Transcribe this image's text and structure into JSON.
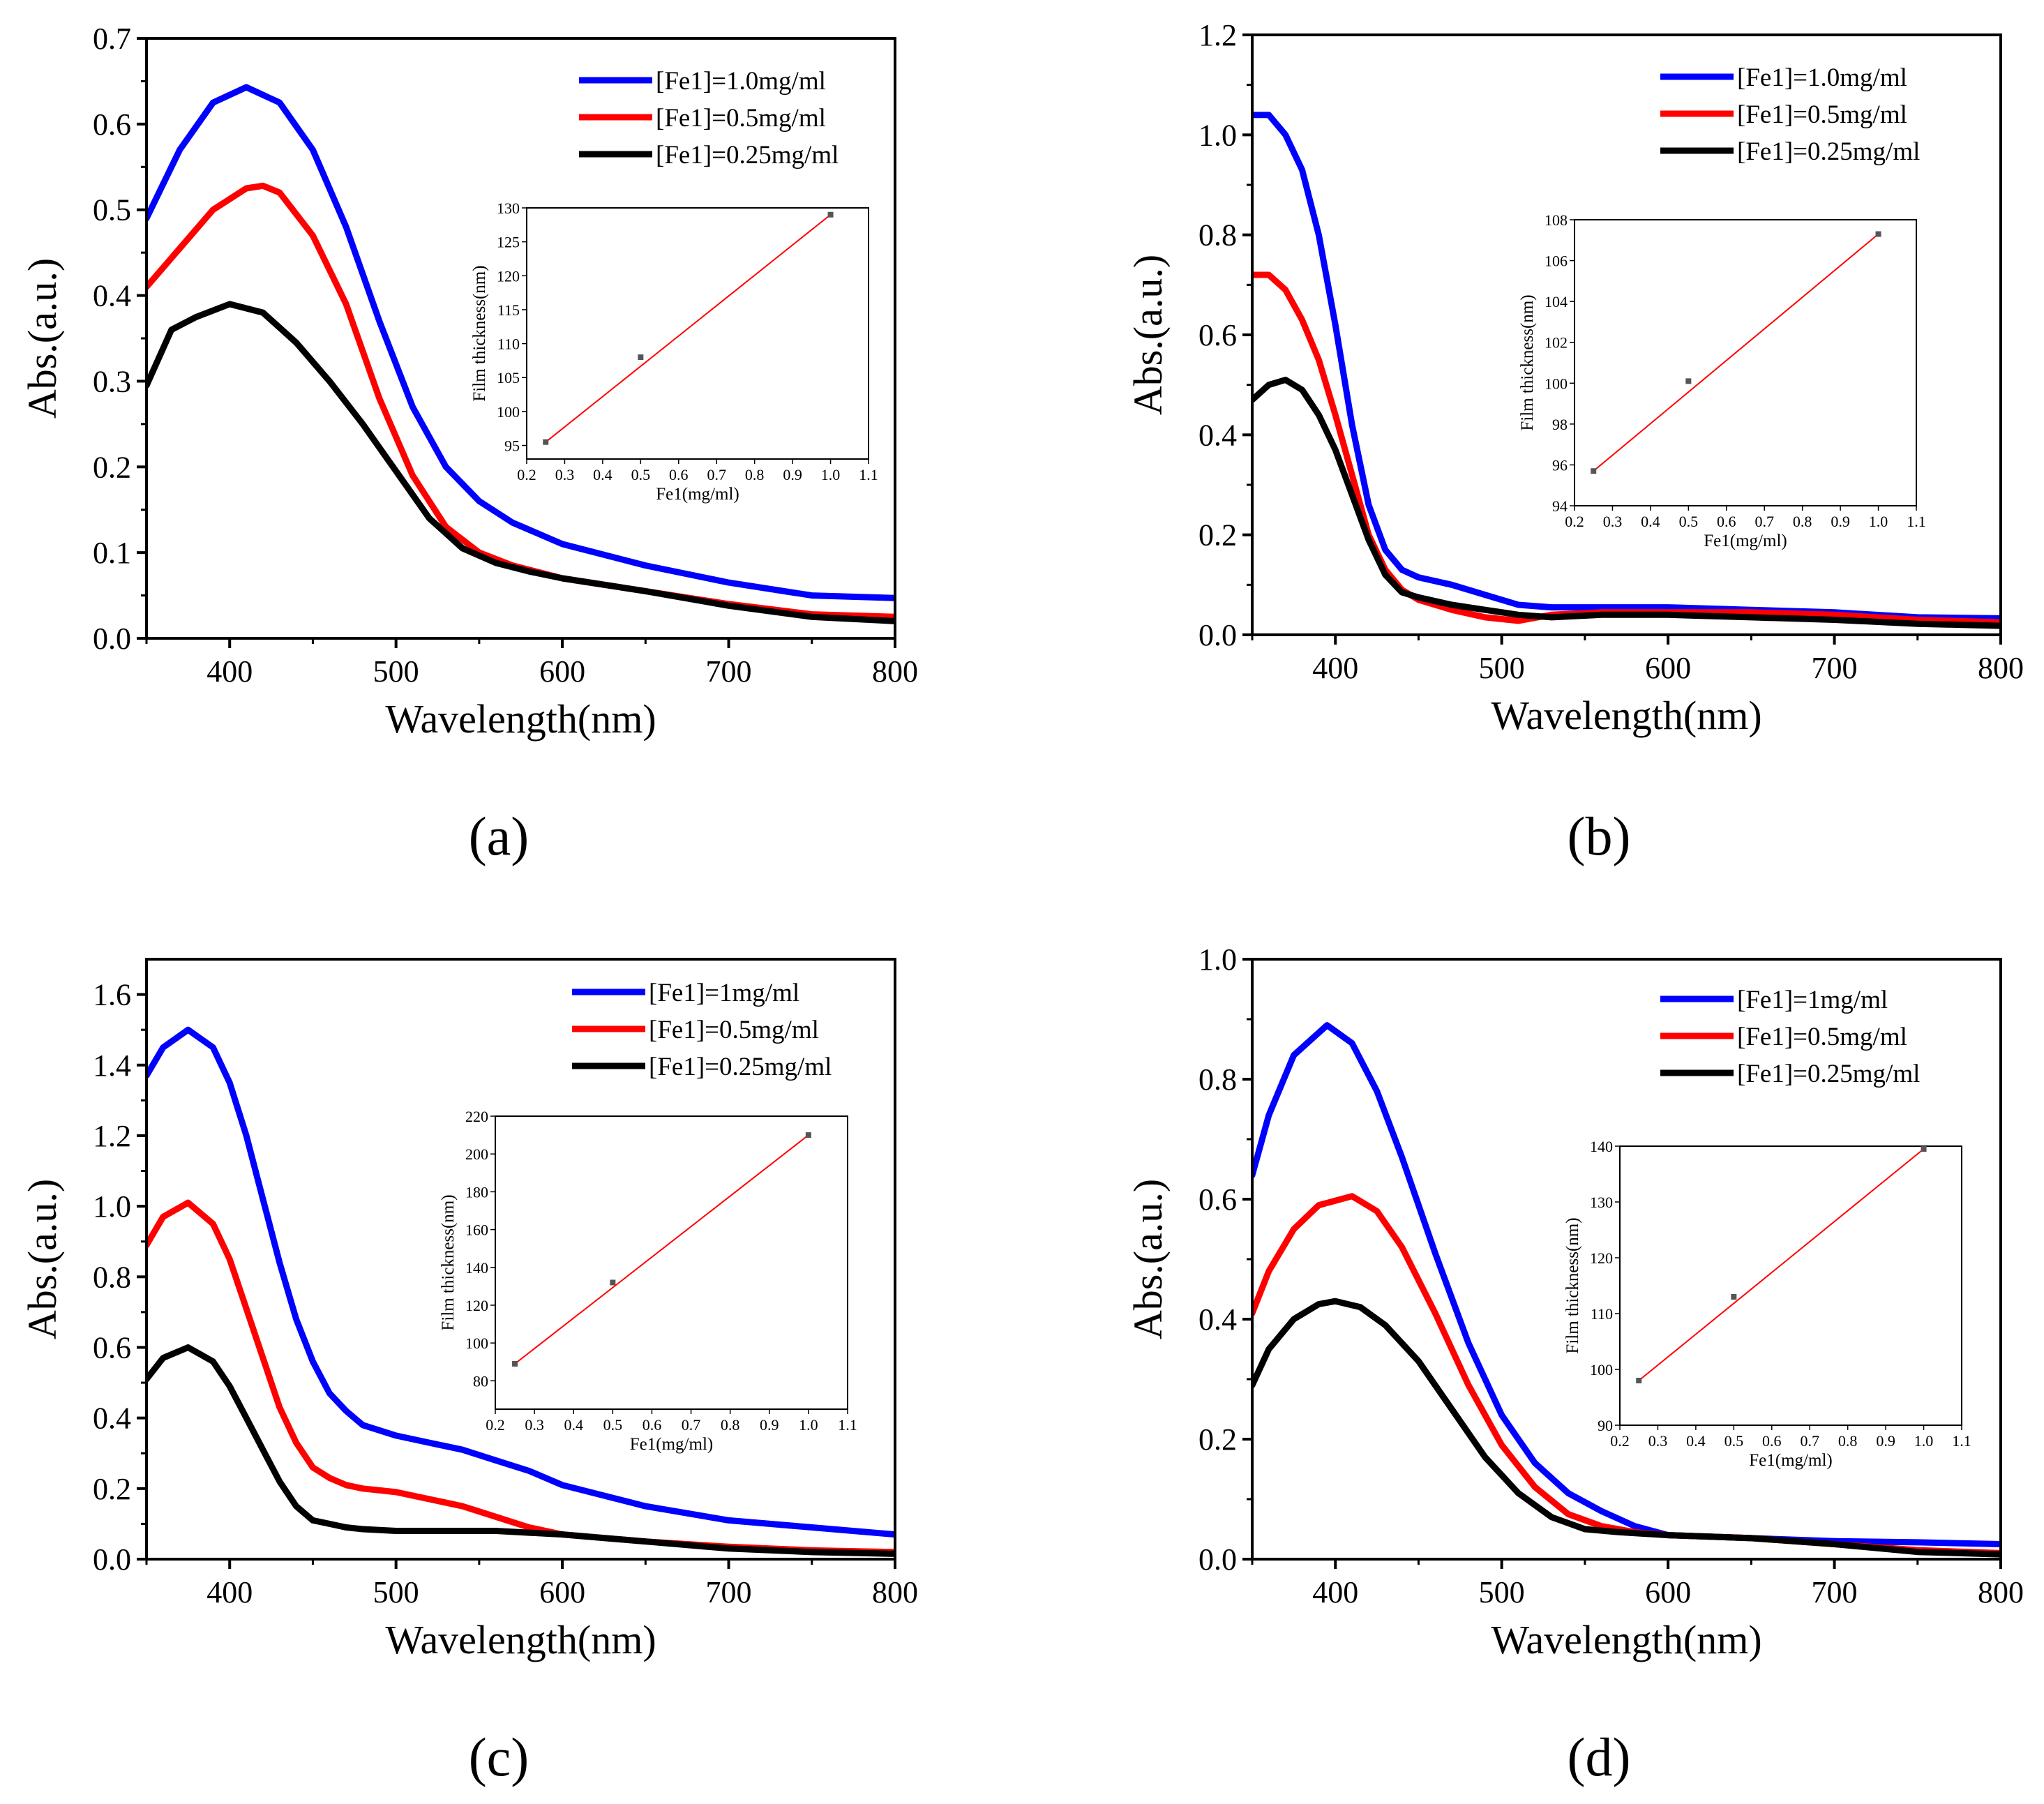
{
  "chart_data": [
    {
      "type": "line",
      "panel_label": "(a)",
      "xlabel": "Wavelength(nm)",
      "ylabel": "Abs.(a.u.)",
      "xlim": [
        350,
        800
      ],
      "ylim": [
        0,
        0.7
      ],
      "xticks": [
        400,
        500,
        600,
        700,
        800
      ],
      "xtick_labels": [
        "400",
        "500",
        "600",
        "700",
        "800"
      ],
      "yticks": [
        0,
        0.1,
        0.2,
        0.3,
        0.4,
        0.5,
        0.6,
        0.7
      ],
      "ytick_labels": [
        "0.0",
        "0.1",
        "0.2",
        "0.3",
        "0.4",
        "0.5",
        "0.6",
        "0.7"
      ],
      "grid": false,
      "legend_position": "top-right",
      "series": [
        {
          "name": "[Fe1]=1.0mg/ml",
          "color": "#0000ff",
          "x": [
            350,
            370,
            390,
            410,
            430,
            450,
            470,
            490,
            510,
            530,
            550,
            570,
            600,
            650,
            700,
            750,
            800
          ],
          "y": [
            0.49,
            0.57,
            0.625,
            0.643,
            0.625,
            0.57,
            0.48,
            0.37,
            0.27,
            0.2,
            0.16,
            0.135,
            0.11,
            0.085,
            0.065,
            0.05,
            0.047
          ]
        },
        {
          "name": "[Fe1]=0.5mg/ml",
          "color": "#ff0000",
          "x": [
            350,
            370,
            390,
            410,
            420,
            430,
            450,
            470,
            490,
            510,
            530,
            550,
            570,
            600,
            650,
            700,
            750,
            800
          ],
          "y": [
            0.41,
            0.455,
            0.5,
            0.525,
            0.528,
            0.52,
            0.47,
            0.39,
            0.28,
            0.19,
            0.13,
            0.1,
            0.085,
            0.07,
            0.055,
            0.04,
            0.028,
            0.025
          ]
        },
        {
          "name": "[Fe1]=0.25mg/ml",
          "color": "#000000",
          "x": [
            350,
            365,
            380,
            400,
            420,
            440,
            460,
            480,
            500,
            520,
            540,
            560,
            580,
            600,
            650,
            700,
            750,
            800
          ],
          "y": [
            0.295,
            0.36,
            0.375,
            0.39,
            0.38,
            0.345,
            0.3,
            0.25,
            0.195,
            0.14,
            0.105,
            0.088,
            0.078,
            0.07,
            0.055,
            0.038,
            0.025,
            0.02
          ]
        }
      ],
      "inset": {
        "xlabel": "Fe1(mg/ml)",
        "ylabel": "Film thickness(nm)",
        "xlim": [
          0.2,
          1.1
        ],
        "ylim": [
          93,
          130
        ],
        "xticks": [
          0.2,
          0.3,
          0.4,
          0.5,
          0.6,
          0.7,
          0.8,
          0.9,
          1.0,
          1.1
        ],
        "xtick_labels": [
          "0.2",
          "0.3",
          "0.4",
          "0.5",
          "0.6",
          "0.7",
          "0.8",
          "0.9",
          "1.0",
          "1.1"
        ],
        "yticks": [
          95,
          100,
          105,
          110,
          115,
          120,
          125,
          130
        ],
        "ytick_labels": [
          "95",
          "100",
          "105",
          "110",
          "115",
          "120",
          "125",
          "130"
        ],
        "points": {
          "x": [
            0.25,
            0.5,
            1.0
          ],
          "y": [
            95.5,
            108,
            129
          ]
        },
        "fit": {
          "x": [
            0.25,
            1.0
          ],
          "y": [
            95.5,
            129
          ]
        }
      }
    },
    {
      "type": "line",
      "panel_label": "(b)",
      "xlabel": "Wavelength(nm)",
      "ylabel": "Abs.(a.u.)",
      "xlim": [
        350,
        800
      ],
      "ylim": [
        0,
        1.2
      ],
      "xticks": [
        400,
        500,
        600,
        700,
        800
      ],
      "xtick_labels": [
        "400",
        "500",
        "600",
        "700",
        "800"
      ],
      "yticks": [
        0,
        0.2,
        0.4,
        0.6,
        0.8,
        1.0,
        1.2
      ],
      "ytick_labels": [
        "0.0",
        "0.2",
        "0.4",
        "0.6",
        "0.8",
        "1.0",
        "1.2"
      ],
      "grid": false,
      "legend_position": "top-right",
      "series": [
        {
          "name": "[Fe1]=1.0mg/ml",
          "color": "#0000ff",
          "x": [
            350,
            360,
            370,
            380,
            390,
            400,
            410,
            420,
            430,
            440,
            450,
            470,
            490,
            510,
            530,
            560,
            600,
            650,
            700,
            750,
            800
          ],
          "y": [
            1.04,
            1.04,
            1.0,
            0.93,
            0.8,
            0.62,
            0.42,
            0.26,
            0.17,
            0.13,
            0.115,
            0.1,
            0.08,
            0.06,
            0.055,
            0.055,
            0.055,
            0.05,
            0.045,
            0.035,
            0.033
          ]
        },
        {
          "name": "[Fe1]=0.5mg/ml",
          "color": "#ff0000",
          "x": [
            350,
            360,
            370,
            380,
            390,
            400,
            410,
            420,
            430,
            440,
            450,
            470,
            490,
            510,
            530,
            560,
            600,
            650,
            700,
            750,
            800
          ],
          "y": [
            0.72,
            0.72,
            0.69,
            0.63,
            0.55,
            0.44,
            0.32,
            0.2,
            0.13,
            0.09,
            0.07,
            0.05,
            0.035,
            0.028,
            0.04,
            0.045,
            0.045,
            0.045,
            0.04,
            0.03,
            0.025
          ]
        },
        {
          "name": "[Fe1]=0.25mg/ml",
          "color": "#000000",
          "x": [
            350,
            360,
            370,
            380,
            390,
            400,
            410,
            420,
            430,
            440,
            450,
            470,
            490,
            510,
            530,
            560,
            600,
            650,
            700,
            750,
            800
          ],
          "y": [
            0.47,
            0.5,
            0.51,
            0.49,
            0.44,
            0.37,
            0.28,
            0.19,
            0.12,
            0.085,
            0.075,
            0.06,
            0.05,
            0.04,
            0.035,
            0.04,
            0.04,
            0.035,
            0.03,
            0.022,
            0.018
          ]
        }
      ],
      "inset": {
        "xlabel": "Fe1(mg/ml)",
        "ylabel": "Film thickness(nm)",
        "xlim": [
          0.2,
          1.1
        ],
        "ylim": [
          94,
          108
        ],
        "xticks": [
          0.2,
          0.3,
          0.4,
          0.5,
          0.6,
          0.7,
          0.8,
          0.9,
          1.0,
          1.1
        ],
        "xtick_labels": [
          "0.2",
          "0.3",
          "0.4",
          "0.5",
          "0.6",
          "0.7",
          "0.8",
          "0.9",
          "1.0",
          "1.1"
        ],
        "yticks": [
          94,
          96,
          98,
          100,
          102,
          104,
          106,
          108
        ],
        "ytick_labels": [
          "94",
          "96",
          "98",
          "100",
          "102",
          "104",
          "106",
          "108"
        ],
        "points": {
          "x": [
            0.25,
            0.5,
            1.0
          ],
          "y": [
            95.7,
            100.1,
            107.3
          ]
        },
        "fit": {
          "x": [
            0.25,
            1.0
          ],
          "y": [
            95.7,
            107.3
          ]
        }
      }
    },
    {
      "type": "line",
      "panel_label": "(c)",
      "xlabel": "Wavelength(nm)",
      "ylabel": "Abs.(a.u.)",
      "xlim": [
        350,
        800
      ],
      "ylim": [
        0,
        1.7
      ],
      "xticks": [
        400,
        500,
        600,
        700,
        800
      ],
      "xtick_labels": [
        "400",
        "500",
        "600",
        "700",
        "800"
      ],
      "yticks": [
        0,
        0.2,
        0.4,
        0.6,
        0.8,
        1.0,
        1.2,
        1.4,
        1.6
      ],
      "ytick_labels": [
        "0.0",
        "0.2",
        "0.4",
        "0.6",
        "0.8",
        "1.0",
        "1.2",
        "1.4",
        "1.6"
      ],
      "grid": false,
      "legend_position": "top-right",
      "series": [
        {
          "name": "[Fe1]=1mg/ml",
          "color": "#0000ff",
          "x": [
            350,
            360,
            375,
            390,
            400,
            410,
            420,
            430,
            440,
            450,
            460,
            470,
            480,
            500,
            520,
            540,
            560,
            580,
            600,
            650,
            700,
            750,
            800
          ],
          "y": [
            1.37,
            1.45,
            1.5,
            1.45,
            1.35,
            1.2,
            1.02,
            0.84,
            0.68,
            0.56,
            0.47,
            0.42,
            0.38,
            0.35,
            0.33,
            0.31,
            0.28,
            0.25,
            0.21,
            0.15,
            0.11,
            0.09,
            0.07
          ]
        },
        {
          "name": "[Fe1]=0.5mg/ml",
          "color": "#ff0000",
          "x": [
            350,
            360,
            375,
            390,
            400,
            410,
            420,
            430,
            440,
            450,
            460,
            470,
            480,
            500,
            520,
            540,
            560,
            580,
            600,
            650,
            700,
            750,
            800
          ],
          "y": [
            0.89,
            0.97,
            1.01,
            0.95,
            0.85,
            0.71,
            0.57,
            0.43,
            0.33,
            0.26,
            0.23,
            0.21,
            0.2,
            0.19,
            0.17,
            0.15,
            0.12,
            0.09,
            0.07,
            0.05,
            0.035,
            0.025,
            0.02
          ]
        },
        {
          "name": "[Fe1]=0.25mg/ml",
          "color": "#000000",
          "x": [
            350,
            360,
            375,
            390,
            400,
            410,
            420,
            430,
            440,
            450,
            460,
            470,
            480,
            500,
            520,
            540,
            560,
            580,
            600,
            650,
            700,
            750,
            800
          ],
          "y": [
            0.51,
            0.57,
            0.6,
            0.56,
            0.49,
            0.4,
            0.31,
            0.22,
            0.15,
            0.11,
            0.1,
            0.09,
            0.085,
            0.08,
            0.08,
            0.08,
            0.08,
            0.075,
            0.07,
            0.05,
            0.03,
            0.02,
            0.015
          ]
        }
      ],
      "inset": {
        "xlabel": "Fe1(mg/ml)",
        "ylabel": "Film thickness(nm)",
        "xlim": [
          0.2,
          1.1
        ],
        "ylim": [
          65,
          220
        ],
        "xticks": [
          0.2,
          0.3,
          0.4,
          0.5,
          0.6,
          0.7,
          0.8,
          0.9,
          1.0,
          1.1
        ],
        "xtick_labels": [
          "0.2",
          "0.3",
          "0.4",
          "0.5",
          "0.6",
          "0.7",
          "0.8",
          "0.9",
          "1.0",
          "1.1"
        ],
        "yticks": [
          80,
          100,
          120,
          140,
          160,
          180,
          200,
          220
        ],
        "ytick_labels": [
          "80",
          "100",
          "120",
          "140",
          "160",
          "180",
          "200",
          "220"
        ],
        "points": {
          "x": [
            0.25,
            0.5,
            1.0
          ],
          "y": [
            89,
            132,
            210
          ]
        },
        "fit": {
          "x": [
            0.25,
            1.0
          ],
          "y": [
            89,
            210
          ]
        }
      }
    },
    {
      "type": "line",
      "panel_label": "(d)",
      "xlabel": "Wavelength(nm)",
      "ylabel": "Abs.(a.u.)",
      "xlim": [
        350,
        800
      ],
      "ylim": [
        0,
        1.0
      ],
      "xticks": [
        400,
        500,
        600,
        700,
        800
      ],
      "xtick_labels": [
        "400",
        "500",
        "600",
        "700",
        "800"
      ],
      "yticks": [
        0,
        0.2,
        0.4,
        0.6,
        0.8,
        1.0
      ],
      "ytick_labels": [
        "0.0",
        "0.2",
        "0.4",
        "0.6",
        "0.8",
        "1.0"
      ],
      "grid": false,
      "legend_position": "top-right",
      "series": [
        {
          "name": "[Fe1]=1mg/ml",
          "color": "#0000ff",
          "x": [
            350,
            360,
            375,
            395,
            410,
            425,
            440,
            460,
            480,
            500,
            520,
            540,
            560,
            580,
            600,
            650,
            700,
            750,
            800
          ],
          "y": [
            0.64,
            0.74,
            0.84,
            0.89,
            0.86,
            0.78,
            0.67,
            0.51,
            0.36,
            0.24,
            0.16,
            0.11,
            0.08,
            0.055,
            0.04,
            0.035,
            0.03,
            0.028,
            0.025
          ]
        },
        {
          "name": "[Fe1]=0.5mg/ml",
          "color": "#ff0000",
          "x": [
            350,
            360,
            375,
            390,
            410,
            425,
            440,
            460,
            480,
            500,
            520,
            540,
            560,
            580,
            600,
            650,
            700,
            750,
            800
          ],
          "y": [
            0.41,
            0.48,
            0.55,
            0.59,
            0.605,
            0.58,
            0.52,
            0.41,
            0.29,
            0.19,
            0.12,
            0.075,
            0.055,
            0.045,
            0.04,
            0.035,
            0.025,
            0.015,
            0.01
          ]
        },
        {
          "name": "[Fe1]=0.25mg/ml",
          "color": "#000000",
          "x": [
            350,
            360,
            375,
            390,
            400,
            415,
            430,
            450,
            470,
            490,
            510,
            530,
            550,
            570,
            600,
            650,
            700,
            750,
            800
          ],
          "y": [
            0.29,
            0.35,
            0.4,
            0.425,
            0.43,
            0.42,
            0.39,
            0.33,
            0.25,
            0.17,
            0.11,
            0.07,
            0.05,
            0.045,
            0.04,
            0.035,
            0.025,
            0.012,
            0.008
          ]
        }
      ],
      "inset": {
        "xlabel": "Fe1(mg/ml)",
        "ylabel": "Film thickness(nm)",
        "xlim": [
          0.2,
          1.1
        ],
        "ylim": [
          90,
          140
        ],
        "xticks": [
          0.2,
          0.3,
          0.4,
          0.5,
          0.6,
          0.7,
          0.8,
          0.9,
          1.0,
          1.1
        ],
        "xtick_labels": [
          "0.2",
          "0.3",
          "0.4",
          "0.5",
          "0.6",
          "0.7",
          "0.8",
          "0.9",
          "1.0",
          "1.1"
        ],
        "yticks": [
          90,
          100,
          110,
          120,
          130,
          140
        ],
        "ytick_labels": [
          "90",
          "100",
          "110",
          "120",
          "130",
          "140"
        ],
        "points": {
          "x": [
            0.25,
            0.5,
            1.0
          ],
          "y": [
            98,
            113,
            139.5
          ]
        },
        "fit": {
          "x": [
            0.25,
            1.0
          ],
          "y": [
            98,
            139.5
          ]
        }
      }
    }
  ]
}
